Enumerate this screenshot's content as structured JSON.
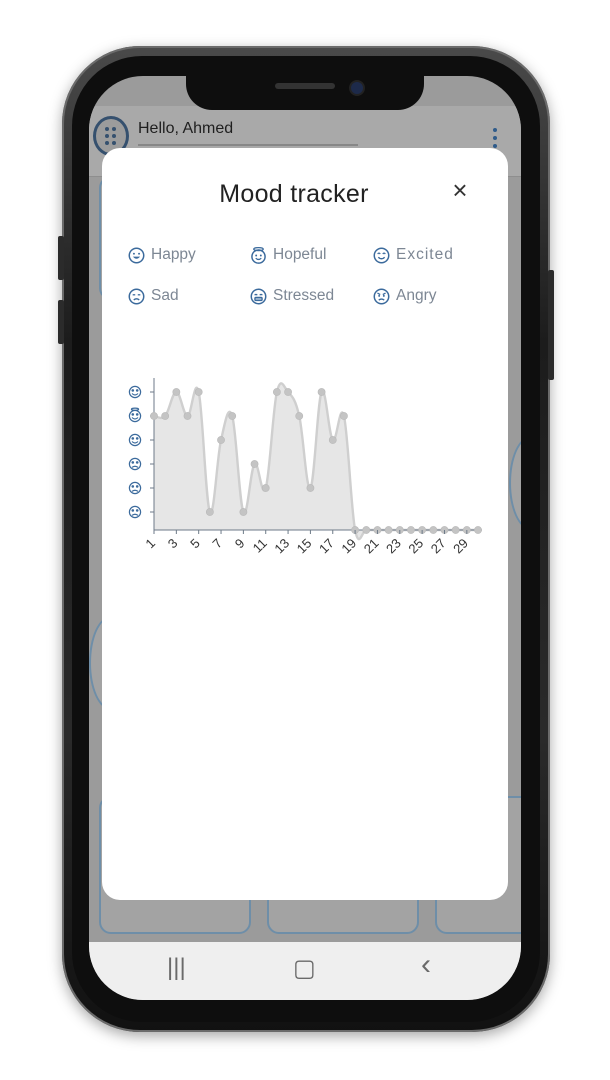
{
  "app": {
    "greeting": "Hello, Ahmed"
  },
  "modal": {
    "title": "Mood tracker",
    "close_icon": "×"
  },
  "legend": [
    {
      "label": "Happy",
      "icon": "grin-face-icon"
    },
    {
      "label": "Hopeful",
      "icon": "halo-face-icon"
    },
    {
      "label": "Excited",
      "icon": "excited-face-icon"
    },
    {
      "label": "Sad",
      "icon": "sad-face-icon"
    },
    {
      "label": "Stressed",
      "icon": "stressed-face-icon"
    },
    {
      "label": "Angry",
      "icon": "angry-face-icon"
    }
  ],
  "nav": {
    "recent": "|||",
    "home": "▢",
    "back": "‹"
  },
  "colors": {
    "icon_blue": "#3b6a9c",
    "area_fill": "#e6e6e6",
    "line": "#cfcfcf",
    "point": "#c4c4c4"
  },
  "chart_data": {
    "type": "area",
    "y_levels": [
      "Angry",
      "Sad",
      "Stressed",
      "Excited",
      "Hopeful",
      "Happy"
    ],
    "x_tick_labels": [
      "1",
      "3",
      "5",
      "7",
      "9",
      "11",
      "13",
      "15",
      "17",
      "19",
      "21",
      "23",
      "25",
      "27",
      "29"
    ],
    "x": [
      1,
      2,
      3,
      4,
      5,
      6,
      7,
      8,
      9,
      10,
      11,
      12,
      13,
      14,
      15,
      16,
      17,
      18,
      19,
      20,
      21,
      22,
      23,
      24,
      25,
      26,
      27,
      28,
      29,
      30
    ],
    "values": [
      5,
      5,
      6,
      5,
      6,
      1,
      4,
      5,
      1,
      3,
      2,
      6,
      6,
      5,
      2,
      6,
      4,
      5,
      0,
      0,
      0,
      0,
      0,
      0,
      0,
      0,
      0,
      0,
      0,
      0
    ],
    "xlim": [
      1,
      30
    ],
    "ylim": [
      0,
      6
    ]
  }
}
